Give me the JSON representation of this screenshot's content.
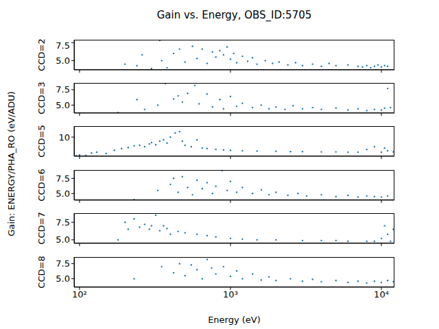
{
  "title": "Gain vs. Energy, OBS_ID:5705",
  "x_label": "Energy (eV)",
  "y_label": "Gain: ENERGY/PHA_RO (eV/ADU)",
  "chart_data": [
    {
      "type": "scatter",
      "y_label": "CCD=2",
      "color": "#1f77b4",
      "marker": "dot",
      "log": "x",
      "tick_labels": "y",
      "xlim": [
        92,
        12200
      ],
      "xticks": [
        {
          "value": 100,
          "label": "10²"
        },
        {
          "value": 1000,
          "label": "10³"
        },
        {
          "value": 10000,
          "label": "10⁴"
        }
      ],
      "ylim": [
        3.7,
        7.9
      ],
      "yticks": [
        {
          "value": 5,
          "label": "5.0"
        },
        7.5
      ],
      "x": [
        200,
        240,
        260,
        300,
        340,
        350,
        380,
        420,
        460,
        500,
        560,
        600,
        650,
        700,
        760,
        800,
        850,
        900,
        950,
        1000,
        1050,
        1100,
        1200,
        1300,
        1400,
        1500,
        1700,
        1900,
        2100,
        2400,
        2700,
        3000,
        3500,
        4000,
        4500,
        5000,
        6000,
        7000,
        7500,
        8000,
        8500,
        9000,
        9500,
        10000,
        10500,
        11000
      ],
      "values": [
        4.5,
        4.3,
        5.8,
        3.9,
        7.8,
        5.0,
        4.0,
        6.0,
        6.6,
        4.8,
        7.0,
        5.3,
        6.6,
        4.6,
        6.2,
        5.5,
        6.4,
        5.8,
        6.9,
        5.2,
        6.0,
        4.7,
        5.6,
        4.9,
        5.4,
        4.5,
        5.0,
        4.6,
        4.8,
        4.4,
        4.7,
        4.3,
        4.5,
        4.2,
        4.6,
        4.3,
        4.4,
        4.2,
        4.1,
        4.3,
        4.0,
        4.2,
        4.4,
        4.1,
        4.3,
        4.2
      ]
    },
    {
      "type": "scatter",
      "y_label": "CCD=3",
      "color": "#1f77b4",
      "marker": "dot",
      "log": "x",
      "tick_labels": "y",
      "xlim": [
        92,
        12200
      ],
      "xticks": [
        {
          "value": 100,
          "label": "10²"
        },
        {
          "value": 1000,
          "label": "10³"
        },
        {
          "value": 10000,
          "label": "10⁴"
        }
      ],
      "ylim": [
        3.7,
        8.6
      ],
      "yticks": [
        {
          "value": 5,
          "label": "5.0"
        },
        7.5
      ],
      "x": [
        180,
        240,
        270,
        330,
        370,
        420,
        450,
        480,
        520,
        580,
        620,
        700,
        760,
        850,
        900,
        1000,
        1100,
        1200,
        1400,
        1600,
        1800,
        2000,
        2300,
        2600,
        3000,
        3500,
        4000,
        5000,
        6000,
        7000,
        8000,
        9000,
        10000,
        10500,
        11000,
        11500
      ],
      "values": [
        3.8,
        5.9,
        4.3,
        5.0,
        8.5,
        6.0,
        6.5,
        5.5,
        6.9,
        8.2,
        5.2,
        6.8,
        4.7,
        5.9,
        4.4,
        6.4,
        4.8,
        5.3,
        4.6,
        5.0,
        4.4,
        4.7,
        4.3,
        4.9,
        4.4,
        4.6,
        4.3,
        4.5,
        4.2,
        4.4,
        4.1,
        4.3,
        4.2,
        4.5,
        7.7,
        4.6
      ]
    },
    {
      "type": "scatter",
      "y_label": "CCD=5",
      "color": "#1f77b4",
      "marker": "dot",
      "log": "x",
      "tick_labels": "y",
      "xlim": [
        92,
        12200
      ],
      "xticks": [
        {
          "value": 100,
          "label": "10²"
        },
        {
          "value": 1000,
          "label": "10³"
        },
        {
          "value": 10000,
          "label": "10⁴"
        }
      ],
      "ylim": [
        3,
        14
      ],
      "yticks": [
        5,
        10
      ],
      "x": [
        95,
        100,
        110,
        120,
        130,
        150,
        170,
        190,
        210,
        230,
        250,
        270,
        290,
        300,
        320,
        340,
        360,
        380,
        400,
        430,
        460,
        480,
        500,
        550,
        600,
        650,
        700,
        800,
        900,
        1000,
        1200,
        1500,
        2000,
        2500,
        3000,
        4000,
        5000,
        6000,
        7000,
        8000,
        9000,
        10000,
        10500,
        11000,
        12000
      ],
      "values": [
        3.2,
        3.5,
        3.3,
        4.2,
        4.5,
        4.0,
        5.2,
        5.8,
        6.2,
        6.8,
        7.0,
        6.5,
        7.5,
        8.0,
        7.2,
        8.5,
        9.0,
        7.8,
        10.0,
        11.5,
        12.0,
        8.5,
        7.0,
        6.5,
        9.0,
        6.0,
        5.8,
        5.5,
        5.3,
        5.2,
        5.0,
        4.9,
        4.8,
        4.7,
        4.7,
        4.6,
        4.6,
        4.5,
        4.5,
        5.5,
        6.5,
        4.5,
        6.0,
        5.0,
        4.6
      ]
    },
    {
      "type": "scatter",
      "y_label": "CCD=6",
      "color": "#1f77b4",
      "marker": "dot",
      "log": "x",
      "tick_labels": "y",
      "xlim": [
        92,
        12200
      ],
      "xticks": [
        {
          "value": 100,
          "label": "10²"
        },
        {
          "value": 1000,
          "label": "10³"
        },
        {
          "value": 10000,
          "label": "10⁴"
        }
      ],
      "ylim": [
        3.9,
        8.9
      ],
      "yticks": [
        {
          "value": 5,
          "label": "5.0"
        },
        7.5
      ],
      "x": [
        230,
        330,
        400,
        420,
        450,
        480,
        520,
        560,
        600,
        650,
        700,
        760,
        800,
        880,
        950,
        1000,
        1100,
        1200,
        1400,
        1600,
        1800,
        2000,
        2400,
        2800,
        3200,
        4000,
        5000,
        6000,
        7000,
        8000,
        9000,
        10000,
        11000
      ],
      "values": [
        4.0,
        5.5,
        6.5,
        7.5,
        5.2,
        7.8,
        6.0,
        4.8,
        7.2,
        5.8,
        6.8,
        5.0,
        6.2,
        8.8,
        5.5,
        7.0,
        5.2,
        6.0,
        5.0,
        5.6,
        4.8,
        5.2,
        4.7,
        5.0,
        4.6,
        4.8,
        4.5,
        4.7,
        4.4,
        4.6,
        4.5,
        4.4,
        4.6
      ]
    },
    {
      "type": "scatter",
      "y_label": "CCD=7",
      "color": "#1f77b4",
      "marker": "dot",
      "log": "x",
      "tick_labels": "y",
      "xlim": [
        92,
        12200
      ],
      "xticks": [
        {
          "value": 100,
          "label": "10²"
        },
        {
          "value": 1000,
          "label": "10³"
        },
        {
          "value": 10000,
          "label": "10⁴"
        }
      ],
      "ylim": [
        4.5,
        8.8
      ],
      "yticks": [
        {
          "value": 5,
          "label": "5.0"
        },
        7.5
      ],
      "x": [
        180,
        200,
        210,
        230,
        250,
        270,
        290,
        300,
        320,
        340,
        360,
        380,
        400,
        450,
        500,
        600,
        700,
        800,
        1000,
        1200,
        1500,
        2000,
        3000,
        4000,
        5000,
        6000,
        8000,
        9000,
        10000,
        10500,
        11000,
        11500,
        12000
      ],
      "values": [
        5.0,
        7.5,
        6.5,
        8.0,
        6.8,
        7.2,
        6.5,
        7.0,
        8.5,
        6.3,
        7.0,
        6.6,
        5.8,
        6.2,
        6.0,
        5.8,
        5.6,
        5.4,
        5.2,
        5.1,
        5.0,
        5.0,
        4.9,
        4.9,
        4.9,
        4.8,
        4.8,
        4.8,
        5.2,
        7.0,
        5.8,
        4.8,
        6.5
      ]
    },
    {
      "type": "scatter",
      "y_label": "CCD=8",
      "color": "#1f77b4",
      "marker": "dot",
      "log": "x",
      "xlim": [
        92,
        12200
      ],
      "xticks": [
        {
          "value": 100,
          "label": "10²"
        },
        {
          "value": 1000,
          "label": "10³"
        },
        {
          "value": 10000,
          "label": "10⁴"
        }
      ],
      "ylim": [
        3.6,
        8.6
      ],
      "yticks": [
        {
          "value": 5,
          "label": "5.0"
        },
        7.5
      ],
      "x": [
        230,
        350,
        420,
        460,
        500,
        550,
        600,
        650,
        700,
        750,
        800,
        900,
        1000,
        1100,
        1200,
        1400,
        1600,
        1800,
        2000,
        2500,
        3000,
        3500,
        4000,
        5000,
        6000,
        7000,
        8000,
        9000,
        10000,
        11000,
        12000
      ],
      "values": [
        5.0,
        7.0,
        6.0,
        7.5,
        5.5,
        7.3,
        6.5,
        5.0,
        8.2,
        6.8,
        5.8,
        7.0,
        5.4,
        6.3,
        5.0,
        5.8,
        4.8,
        5.3,
        4.7,
        5.0,
        4.6,
        4.9,
        4.5,
        4.7,
        4.4,
        4.6,
        4.3,
        4.6,
        4.4,
        4.7,
        4.5
      ]
    }
  ]
}
